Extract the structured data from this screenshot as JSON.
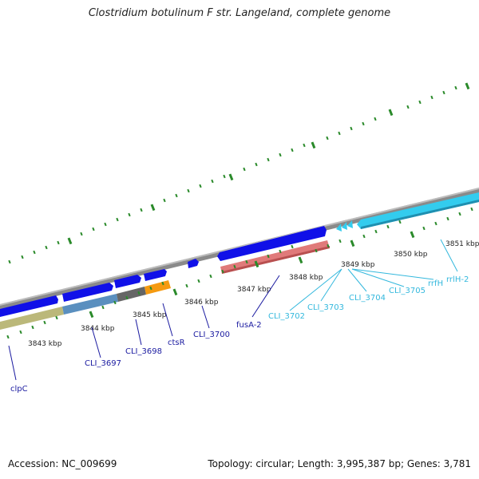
{
  "title": "Clostridium botulinum F str. Langeland, complete genome",
  "accession": "Accession: NC_009699",
  "topology": "Topology: circular; Length: 3,995,387 bp; Genes: 3,781",
  "colors": {
    "backbone": "#8a8a8a",
    "gene_blue": "#1010e8",
    "rna_cyan": "#33ccee",
    "pink": "#e07a7a",
    "olive": "#bbb87a",
    "steel": "#5a8fbf",
    "gray": "#666666",
    "orange": "#f59a10",
    "tick_green": "#2a8a2a",
    "label_blue": "#1a1aa0",
    "label_cyan": "#33b8dd"
  },
  "ticks": [
    "3843 kbp",
    "3844 kbp",
    "3845 kbp",
    "3846 kbp",
    "3847 kbp",
    "3848 kbp",
    "3849 kbp",
    "3850 kbp",
    "3851 kbp"
  ],
  "gene_labels": {
    "clpC": "clpC",
    "cli3697": "CLI_3697",
    "cli3698": "CLI_3698",
    "ctsR": "ctsR",
    "cli3700": "CLI_3700",
    "fusA2": "fusA-2",
    "cli3702": "CLI_3702",
    "cli3703": "CLI_3703",
    "cli3704": "CLI_3704",
    "cli3705": "CLI_3705",
    "rrfH": "rrfH",
    "rrlH2": "rrlH-2"
  }
}
